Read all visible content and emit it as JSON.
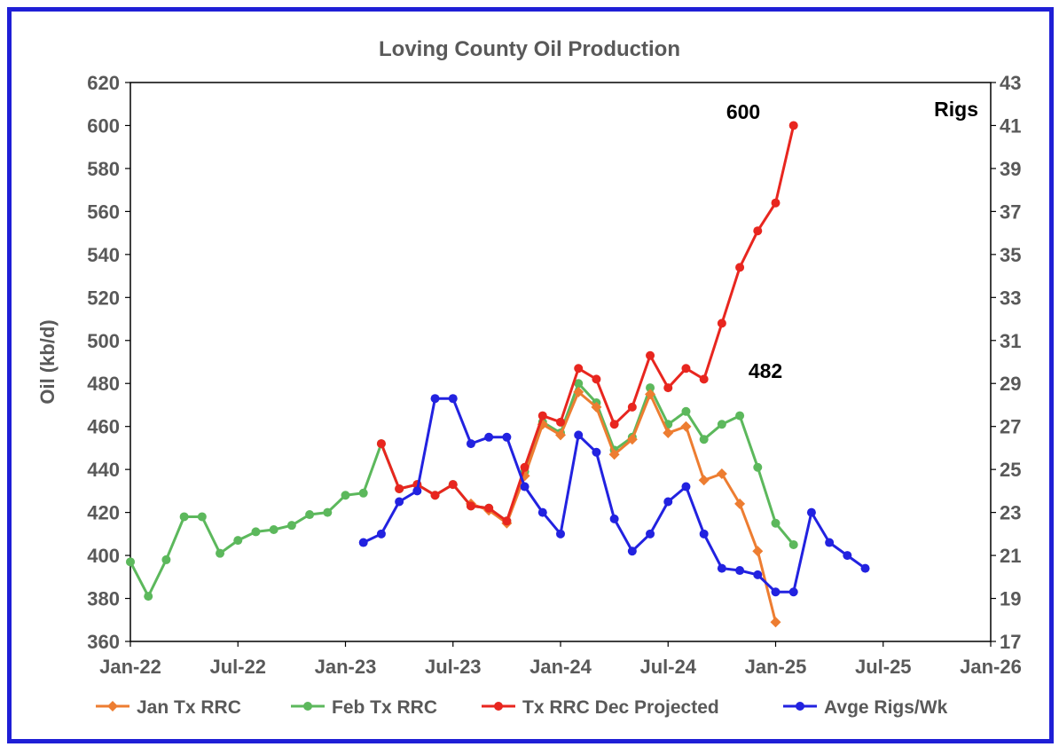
{
  "chart_data": {
    "type": "line",
    "title": "Loving County Oil Production",
    "ylabel": "Oil (kb/d)",
    "y2label": "Rigs",
    "ylim": [
      360,
      620
    ],
    "y2lim": [
      17,
      43
    ],
    "xlim": [
      "2022-01",
      "2026-01"
    ],
    "yticks": [
      "360",
      "380",
      "400",
      "420",
      "440",
      "460",
      "480",
      "500",
      "520",
      "540",
      "560",
      "580",
      "600",
      "620"
    ],
    "y2ticks": [
      "17",
      "19",
      "21",
      "23",
      "25",
      "27",
      "29",
      "31",
      "33",
      "35",
      "37",
      "39",
      "41",
      "43"
    ],
    "xticks": [
      "Jan-22",
      "Jul-22",
      "Jan-23",
      "Jul-23",
      "Jan-24",
      "Jul-24",
      "Jan-25",
      "Jul-25",
      "Jan-26"
    ],
    "grid": false,
    "legend_position": "bottom",
    "annotations": [
      "600",
      "482"
    ],
    "series": [
      {
        "name": "Jan Tx RRC",
        "color": "#ed7d31",
        "marker": "diamond",
        "axis": "left",
        "x": [
          "2023-08",
          "2023-09",
          "2023-10",
          "2023-11",
          "2023-12",
          "2024-01",
          "2024-02",
          "2024-03",
          "2024-04",
          "2024-05",
          "2024-06",
          "2024-07",
          "2024-08",
          "2024-09",
          "2024-10",
          "2024-11",
          "2024-12",
          "2025-01"
        ],
        "y": [
          424,
          421,
          415,
          437,
          461,
          456,
          476,
          469,
          447,
          454,
          475,
          457,
          460,
          435,
          438,
          424,
          402,
          369
        ]
      },
      {
        "name": "Feb Tx RRC",
        "color": "#5cb85c",
        "marker": "circle",
        "axis": "left",
        "x": [
          "2022-01",
          "2022-02",
          "2022-03",
          "2022-04",
          "2022-05",
          "2022-06",
          "2022-07",
          "2022-08",
          "2022-09",
          "2022-10",
          "2022-11",
          "2022-12",
          "2023-01",
          "2023-02",
          "2023-03",
          "2023-04",
          "2023-05",
          "2023-06",
          "2023-07",
          "2023-08",
          "2023-09",
          "2023-10",
          "2023-11",
          "2023-12",
          "2024-01",
          "2024-02",
          "2024-03",
          "2024-04",
          "2024-05",
          "2024-06",
          "2024-07",
          "2024-08",
          "2024-09",
          "2024-10",
          "2024-11",
          "2024-12",
          "2025-01",
          "2025-02"
        ],
        "y": [
          397,
          381,
          398,
          418,
          418,
          401,
          407,
          411,
          412,
          414,
          419,
          420,
          428,
          429,
          452,
          431,
          433,
          428,
          433,
          423,
          422,
          416,
          439,
          462,
          457,
          480,
          471,
          449,
          455,
          478,
          461,
          467,
          454,
          461,
          465,
          441,
          415,
          405
        ]
      },
      {
        "name": "Tx RRC Dec Projected",
        "color": "#e8261f",
        "marker": "circle",
        "axis": "left",
        "x": [
          "2023-03",
          "2023-04",
          "2023-05",
          "2023-06",
          "2023-07",
          "2023-08",
          "2023-09",
          "2023-10",
          "2023-11",
          "2023-12",
          "2024-01",
          "2024-02",
          "2024-03",
          "2024-04",
          "2024-05",
          "2024-06",
          "2024-07",
          "2024-08",
          "2024-09",
          "2024-10",
          "2024-11",
          "2024-12",
          "2025-01",
          "2025-02"
        ],
        "y": [
          452,
          431,
          433,
          428,
          433,
          423,
          422,
          416,
          441,
          465,
          462,
          487,
          482,
          461,
          469,
          493,
          478,
          487,
          482,
          508,
          534,
          551,
          564,
          600
        ]
      },
      {
        "name": "Avge Rigs/Wk",
        "color": "#2222e0",
        "marker": "circle",
        "axis": "right",
        "x": [
          "2023-02",
          "2023-03",
          "2023-04",
          "2023-05",
          "2023-06",
          "2023-07",
          "2023-08",
          "2023-09",
          "2023-10",
          "2023-11",
          "2023-12",
          "2024-01",
          "2024-02",
          "2024-03",
          "2024-04",
          "2024-05",
          "2024-06",
          "2024-07",
          "2024-08",
          "2024-09",
          "2024-10",
          "2024-11",
          "2024-12",
          "2025-01",
          "2025-02",
          "2025-03",
          "2025-04",
          "2025-05",
          "2025-06"
        ],
        "y": [
          21.6,
          22.0,
          23.5,
          24.0,
          28.3,
          28.3,
          26.2,
          26.5,
          26.5,
          24.2,
          23.0,
          22.0,
          26.6,
          25.8,
          22.7,
          21.2,
          22.0,
          23.5,
          24.2,
          22.0,
          20.4,
          20.3,
          20.1,
          19.3,
          19.3,
          23.0,
          21.6,
          21.0,
          20.4
        ]
      }
    ]
  }
}
